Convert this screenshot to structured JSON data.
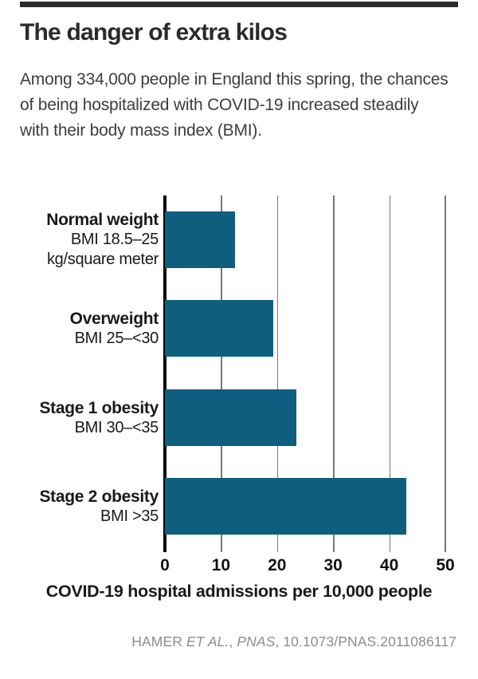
{
  "header": {
    "title": "The danger of extra kilos",
    "subtitle": "Among 334,000 people in England this spring, the chances of being hospitalized with COVID-19 increased steadily with their body mass index (BMI)."
  },
  "chart_data": {
    "type": "bar",
    "orientation": "horizontal",
    "xlabel": "COVID-19 hospital admissions per 10,000 people",
    "xlim": [
      0,
      50
    ],
    "ticks": [
      "0",
      "10",
      "20",
      "30",
      "40",
      "50"
    ],
    "grid": true,
    "legend": "none",
    "bar_color": "#0e5e80",
    "rows": [
      {
        "label": "Normal weight",
        "sublabel1": "BMI 18.5–25",
        "sublabel2": "kg/square meter",
        "value": 12.5
      },
      {
        "label": "Overweight",
        "sublabel1": "BMI 25–<30",
        "value": 19.3
      },
      {
        "label": "Stage 1 obesity",
        "sublabel1": "BMI 30–<35",
        "value": 23.5
      },
      {
        "label": "Stage 2 obesity",
        "sublabel1": "BMI >35",
        "value": 43
      }
    ]
  },
  "source": {
    "author": "HAMER ",
    "etal": "ET AL.",
    "sep": ", ",
    "journal": "PNAS",
    "rest": ", 10.1073/PNAS.2011086117"
  },
  "colors": {
    "bar": "#0e5e80",
    "top_rule": "#2b2b2b",
    "gridline": "#787878",
    "source_text": "#8c8c8c"
  }
}
